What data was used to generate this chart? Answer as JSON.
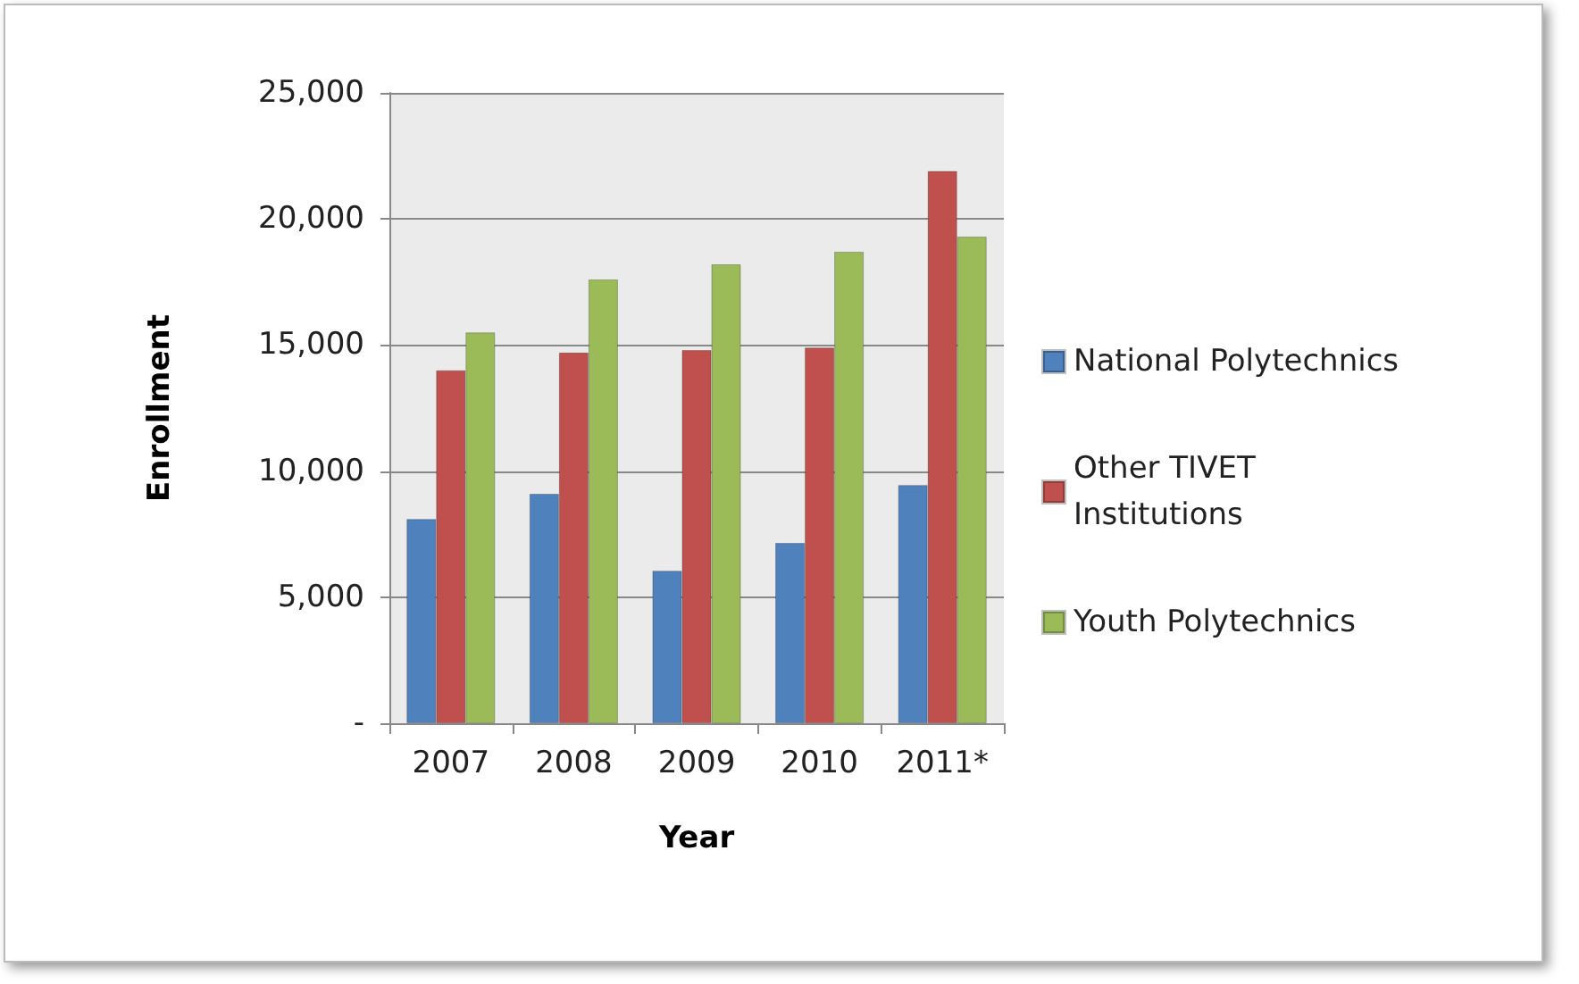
{
  "chart_data": {
    "type": "bar",
    "xlabel": "Year",
    "ylabel": "Enrollment",
    "categories": [
      "2007",
      "2008",
      "2009",
      "2010",
      "2011*"
    ],
    "series": [
      {
        "name": "National Polytechnics",
        "color": "#4f81bd",
        "values": [
          8100,
          9100,
          6050,
          7150,
          9450
        ]
      },
      {
        "name": "Other TIVET Institutions",
        "color": "#c0504d",
        "values": [
          14000,
          14700,
          14800,
          14900,
          21900
        ]
      },
      {
        "name": "Youth Polytechnics",
        "color": "#9bbb59",
        "values": [
          15500,
          17600,
          18200,
          18700,
          19300
        ]
      }
    ],
    "ylim": [
      0,
      25000
    ],
    "yticks": [
      {
        "value": 0,
        "label": "-"
      },
      {
        "value": 5000,
        "label": "5,000"
      },
      {
        "value": 10000,
        "label": "10,000"
      },
      {
        "value": 15000,
        "label": "15,000"
      },
      {
        "value": 20000,
        "label": "20,000"
      },
      {
        "value": 25000,
        "label": "25,000"
      }
    ],
    "grid": "y",
    "legend": "right"
  }
}
